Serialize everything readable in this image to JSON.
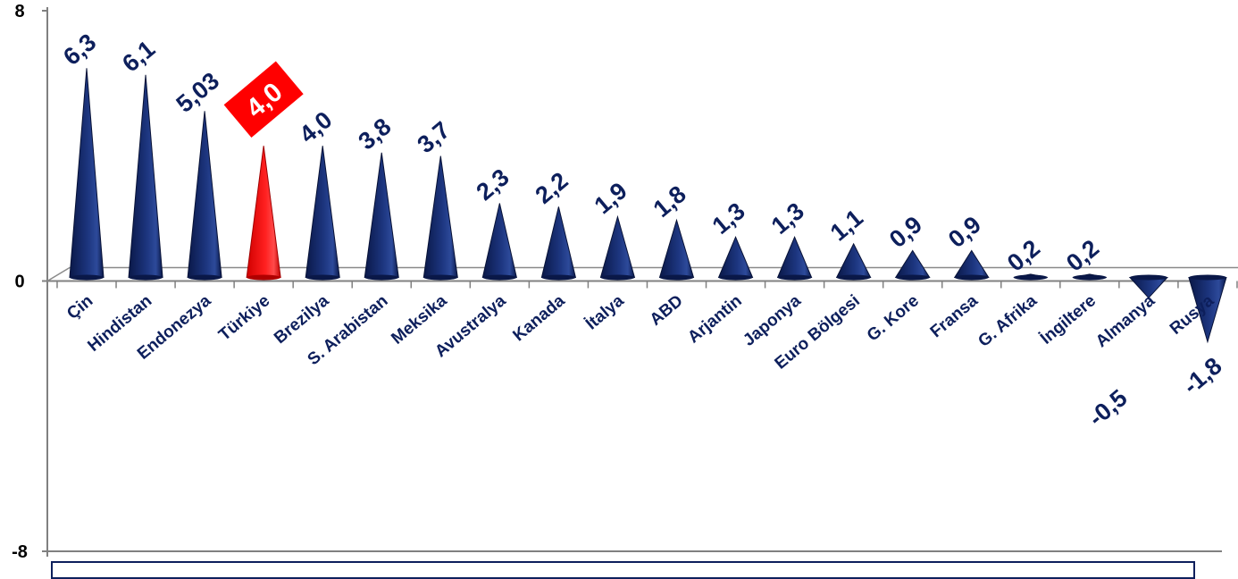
{
  "chart_data": {
    "type": "bar",
    "categories": [
      "Çin",
      "Hindistan",
      "Endonezya",
      "Türkiye",
      "Brezilya",
      "S. Arabistan",
      "Meksika",
      "Avustralya",
      "Kanada",
      "İtalya",
      "ABD",
      "Arjantin",
      "Japonya",
      "Euro Bölgesi",
      "G. Kore",
      "Fransa",
      "G. Afrika",
      "İngiltere",
      "Almanya",
      "Rusya"
    ],
    "values": [
      6.3,
      6.1,
      5.03,
      4.0,
      4.0,
      3.8,
      3.7,
      2.3,
      2.2,
      1.9,
      1.8,
      1.3,
      1.3,
      1.1,
      0.9,
      0.9,
      0.2,
      0.2,
      -0.5,
      -1.8
    ],
    "value_labels": [
      "6,3",
      "6,1",
      "5,03",
      "4,0",
      "4,0",
      "3,8",
      "3,7",
      "2,3",
      "2,2",
      "1,9",
      "1,8",
      "1,3",
      "1,3",
      "1,1",
      "0,9",
      "0,9",
      "0,2",
      "0,2",
      "-0,5",
      "-1,8"
    ],
    "highlight_index": 3,
    "ylim": [
      -8,
      8
    ],
    "yticks": [
      "8",
      "0",
      "-8"
    ],
    "colors": {
      "bar": "#0d1f5c",
      "highlight": "#ff0000",
      "axis": "#808080",
      "label": "#0d1f5c"
    },
    "grid": false,
    "legend": "none"
  }
}
